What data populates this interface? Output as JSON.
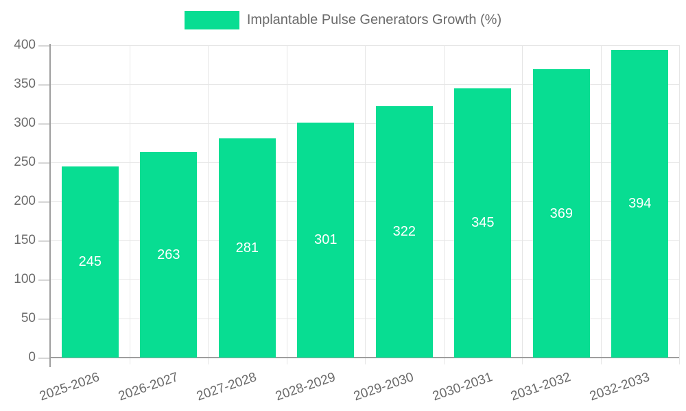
{
  "legend": {
    "label": "Implantable Pulse Generators Growth (%)"
  },
  "chart_data": {
    "type": "bar",
    "title": "",
    "categories": [
      "2025-2026",
      "2026-2027",
      "2027-2028",
      "2028-2029",
      "2029-2030",
      "2030-2031",
      "2031-2032",
      "2032-2033"
    ],
    "values": [
      245,
      263,
      281,
      301,
      322,
      345,
      369,
      394
    ],
    "series_name": "Implantable Pulse Generators Growth (%)",
    "xlabel": "",
    "ylabel": "",
    "ylim": [
      0,
      400
    ],
    "ytick_step": 50,
    "grid": true,
    "legend_position": "top-center",
    "colors": {
      "bar": "#08DD92",
      "value_label": "#FFFFFF",
      "axis": "#9E9E9E",
      "grid": "#E6E6E6",
      "tick": "#D6D6D6",
      "text": "#6B6B6B"
    }
  }
}
